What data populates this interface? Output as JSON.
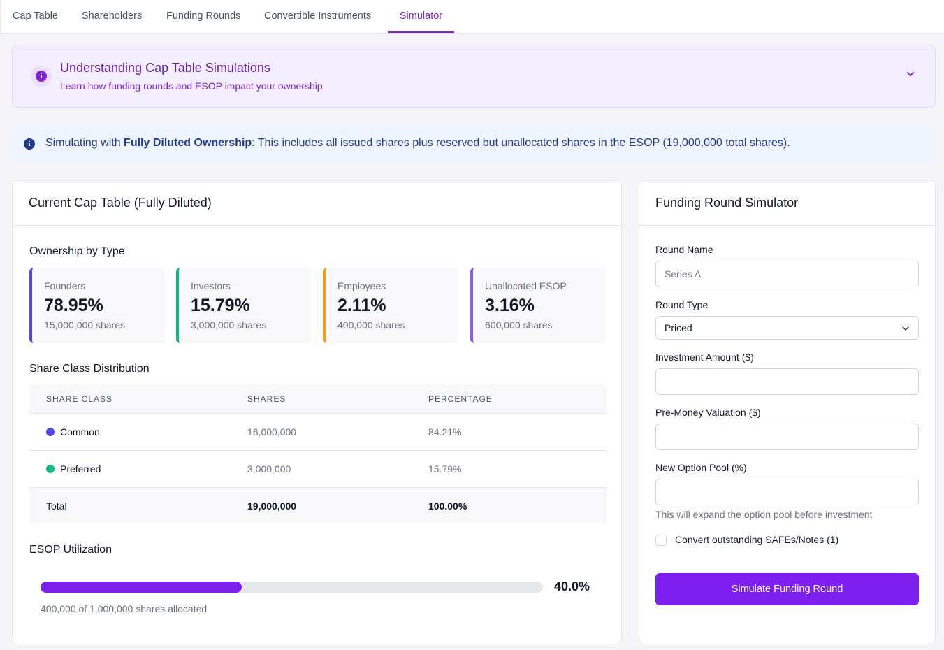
{
  "tabs": [
    {
      "label": "Cap Table"
    },
    {
      "label": "Shareholders"
    },
    {
      "label": "Funding Rounds"
    },
    {
      "label": "Convertible Instruments"
    },
    {
      "label": "Simulator"
    }
  ],
  "guide": {
    "title": "Understanding Cap Table Simulations",
    "subtitle": "Learn how funding rounds and ESOP impact your ownership"
  },
  "notice": {
    "prefix": "Simulating with ",
    "emphasis": "Fully Diluted Ownership",
    "suffix": ": This includes all issued shares plus reserved but unallocated shares in the ESOP (19,000,000 total shares)."
  },
  "cap_table": {
    "title": "Current Cap Table (Fully Diluted)",
    "ownership_title": "Ownership by Type",
    "ownership": [
      {
        "label": "Founders",
        "percent": "78.95%",
        "shares": "15,000,000 shares",
        "color": "#4f46e5"
      },
      {
        "label": "Investors",
        "percent": "15.79%",
        "shares": "3,000,000 shares",
        "color": "#10b981"
      },
      {
        "label": "Employees",
        "percent": "2.11%",
        "shares": "400,000 shares",
        "color": "#f59e0b"
      },
      {
        "label": "Unallocated ESOP",
        "percent": "3.16%",
        "shares": "600,000 shares",
        "color": "#8b5cf6"
      }
    ],
    "distribution_title": "Share Class Distribution",
    "columns": [
      "SHARE CLASS",
      "SHARES",
      "PERCENTAGE"
    ],
    "rows": [
      {
        "class": "Common",
        "shares": "16,000,000",
        "percentage": "84.21%",
        "color": "#4f46e5"
      },
      {
        "class": "Preferred",
        "shares": "3,000,000",
        "percentage": "15.79%",
        "color": "#10b981"
      }
    ],
    "total": {
      "label": "Total",
      "shares": "19,000,000",
      "percentage": "100.00%"
    },
    "esop": {
      "title": "ESOP Utilization",
      "fraction": 0.4,
      "percent_label": "40.0%",
      "note": "400,000 of 1,000,000 shares allocated"
    }
  },
  "simulator": {
    "title": "Funding Round Simulator",
    "round_name_label": "Round Name",
    "round_name_placeholder": "Series A",
    "round_type_label": "Round Type",
    "round_type_value": "Priced",
    "investment_label": "Investment Amount ($)",
    "premoney_label": "Pre-Money Valuation ($)",
    "option_pool_label": "New Option Pool (%)",
    "option_pool_hint": "This will expand the option pool before investment",
    "convert_label": "Convert outstanding SAFEs/Notes (1)",
    "button_label": "Simulate Funding Round"
  },
  "accent_color": "#7c1ff0"
}
